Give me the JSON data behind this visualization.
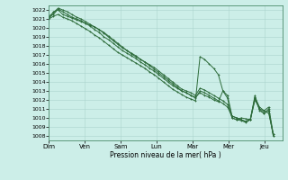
{
  "xlabel": "Pression niveau de la mer( hPa )",
  "bg_color": "#cceee8",
  "grid_color": "#aad4cc",
  "line_color": "#2d6b3a",
  "ylim": [
    1007.5,
    1022.5
  ],
  "yticks": [
    1008,
    1009,
    1010,
    1011,
    1012,
    1013,
    1014,
    1015,
    1016,
    1017,
    1018,
    1019,
    1020,
    1021,
    1022
  ],
  "xtick_labels": [
    "Dim",
    "Ven",
    "Sam",
    "Lun",
    "Mar",
    "Mer",
    "Jeu"
  ],
  "xtick_positions": [
    0,
    8,
    16,
    24,
    32,
    40,
    48
  ],
  "xlim": [
    0,
    52
  ],
  "line1": [
    1021.0,
    1021.8,
    1022.0,
    1021.5,
    1021.3,
    1021.1,
    1020.9,
    1020.7,
    1020.5,
    1020.3,
    1020.1,
    1019.8,
    1019.5,
    1019.1,
    1018.7,
    1018.3,
    1017.9,
    1017.5,
    1017.1,
    1016.8,
    1016.5,
    1016.2,
    1015.9,
    1015.6,
    1015.2,
    1014.8,
    1014.4,
    1014.0,
    1013.6,
    1013.2,
    1013.0,
    1012.8,
    1012.5,
    1013.3,
    1013.1,
    1012.8,
    1012.5,
    1012.2,
    1011.9,
    1011.5,
    1010.0,
    1009.8,
    1010.0,
    1009.9,
    1009.8,
    1012.2,
    1011.0,
    1010.5,
    1011.0,
    1008.0
  ],
  "line2": [
    1021.2,
    1021.5,
    1022.1,
    1021.8,
    1021.5,
    1021.2,
    1021.0,
    1020.8,
    1020.5,
    1020.2,
    1019.8,
    1019.5,
    1019.0,
    1018.7,
    1018.3,
    1017.9,
    1017.5,
    1017.2,
    1016.9,
    1016.6,
    1016.2,
    1015.9,
    1015.5,
    1015.2,
    1014.8,
    1014.4,
    1014.0,
    1013.6,
    1013.3,
    1013.0,
    1012.8,
    1012.5,
    1012.3,
    1012.8,
    1012.5,
    1012.3,
    1012.0,
    1011.8,
    1013.0,
    1012.5,
    1010.2,
    1010.0,
    1009.8,
    1009.6,
    1009.8,
    1012.0,
    1011.0,
    1010.8,
    1010.5,
    1008.2
  ],
  "line3": [
    1021.0,
    1021.3,
    1021.5,
    1021.2,
    1021.0,
    1020.8,
    1020.5,
    1020.2,
    1019.9,
    1019.6,
    1019.2,
    1018.9,
    1018.5,
    1018.1,
    1017.7,
    1017.3,
    1017.0,
    1016.7,
    1016.4,
    1016.1,
    1015.8,
    1015.5,
    1015.1,
    1014.8,
    1014.4,
    1014.0,
    1013.6,
    1013.2,
    1012.9,
    1012.6,
    1012.3,
    1012.1,
    1011.9,
    1016.8,
    1016.5,
    1016.0,
    1015.5,
    1014.8,
    1013.0,
    1012.2,
    1010.0,
    1009.8,
    1009.7,
    1009.5,
    1009.8,
    1012.5,
    1010.8,
    1010.5,
    1010.8,
    1008.0
  ],
  "line4": [
    1021.3,
    1021.7,
    1022.2,
    1022.0,
    1021.8,
    1021.5,
    1021.2,
    1021.0,
    1020.7,
    1020.4,
    1020.1,
    1019.8,
    1019.4,
    1019.0,
    1018.6,
    1018.2,
    1017.8,
    1017.5,
    1017.2,
    1016.9,
    1016.5,
    1016.2,
    1015.8,
    1015.4,
    1015.0,
    1014.6,
    1014.2,
    1013.8,
    1013.4,
    1013.0,
    1012.8,
    1012.5,
    1012.2,
    1013.0,
    1012.8,
    1012.5,
    1012.2,
    1011.9,
    1011.6,
    1011.2,
    1010.2,
    1010.0,
    1009.8,
    1009.6,
    1009.9,
    1012.3,
    1011.2,
    1010.8,
    1011.2,
    1008.2
  ]
}
